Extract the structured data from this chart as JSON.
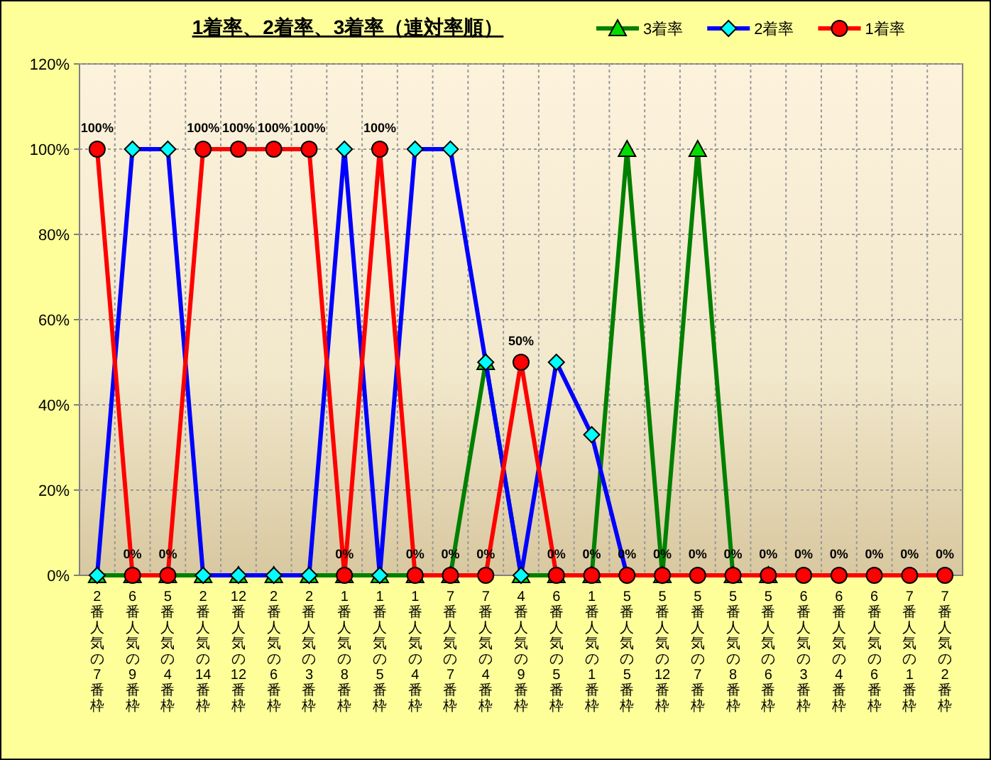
{
  "chart_data": {
    "type": "line",
    "title": "1着率、2着率、3着率（連対率順）",
    "categories": [
      "2番人気の7番枠",
      "6番人気の9番枠",
      "5番人気の4番枠",
      "2番人気の14番枠",
      "12番人気の12番枠",
      "2番人気の6番枠",
      "2番人気の3番枠",
      "1番人気の8番枠",
      "1番人気の5番枠",
      "1番人気の4番枠",
      "7番人気の7番枠",
      "7番人気の4番枠",
      "4番人気の9番枠",
      "6番人気の5番枠",
      "1番人気の1番枠",
      "5番人気の5番枠",
      "5番人気の12番枠",
      "5番人気の7番枠",
      "5番人気の8番枠",
      "5番人気の6番枠",
      "6番人気の3番枠",
      "6番人気の4番枠",
      "6番人気の6番枠",
      "7番人気の1番枠",
      "7番人気の2番枠"
    ],
    "series": [
      {
        "name": "3着率",
        "color": "#008000",
        "marker": "triangle",
        "values": [
          0,
          0,
          0,
          0,
          0,
          0,
          0,
          0,
          0,
          0,
          0,
          50,
          0,
          0,
          0,
          100,
          0,
          100,
          0,
          0,
          null,
          null,
          null,
          null,
          null
        ]
      },
      {
        "name": "2着率",
        "color": "#0000ff",
        "marker": "diamond",
        "values": [
          0,
          100,
          100,
          0,
          0,
          0,
          0,
          100,
          0,
          100,
          100,
          50,
          0,
          50,
          33,
          0,
          0,
          null,
          null,
          null,
          null,
          null,
          null,
          null,
          null
        ]
      },
      {
        "name": "1着率",
        "color": "#ff0000",
        "marker": "circle",
        "values": [
          100,
          0,
          0,
          100,
          100,
          100,
          100,
          0,
          100,
          0,
          0,
          0,
          50,
          0,
          0,
          0,
          0,
          0,
          0,
          0,
          0,
          0,
          0,
          0,
          0
        ],
        "value_labels": [
          "100%",
          "0%",
          "0%",
          "100%",
          "100%",
          "100%",
          "100%",
          "0%",
          "100%",
          "0%",
          "0%",
          "0%",
          "50%",
          "0%",
          "0%",
          "0%",
          "0%",
          "0%",
          "0%",
          "0%",
          "0%",
          "0%",
          "0%",
          "0%",
          "0%"
        ]
      }
    ],
    "ylim": [
      0,
      120
    ],
    "yticks": [
      {
        "value": 0,
        "label": "0%"
      },
      {
        "value": 20,
        "label": "20%"
      },
      {
        "value": 40,
        "label": "40%"
      },
      {
        "value": 60,
        "label": "60%"
      },
      {
        "value": 80,
        "label": "80%"
      },
      {
        "value": 100,
        "label": "100%"
      },
      {
        "value": 120,
        "label": "120%"
      }
    ],
    "grid": true,
    "legend": "top right",
    "line_style": "solid"
  }
}
